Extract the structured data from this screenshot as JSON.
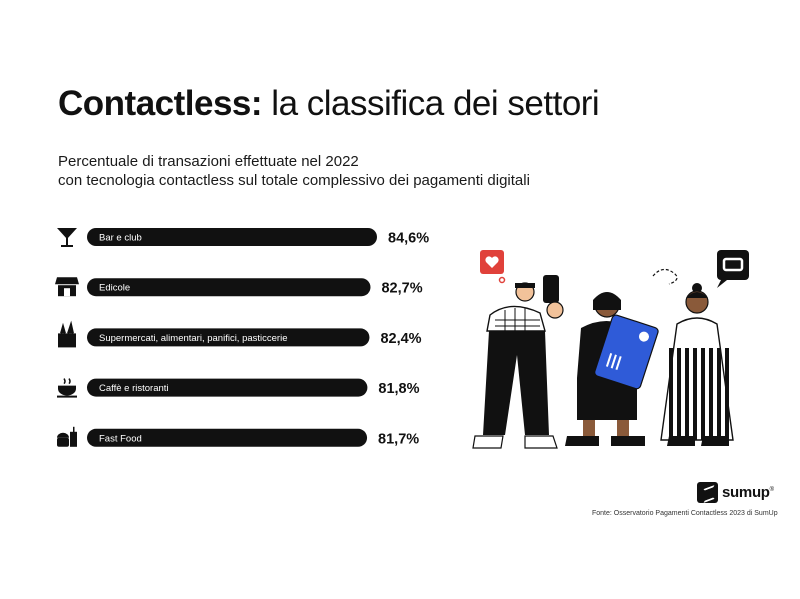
{
  "header": {
    "title_bold": "Contactless:",
    "title_rest": "la classifica dei settori",
    "subtitle_line1": "Percentuale di transazioni effettuate nel 2022",
    "subtitle_line2": "con tecnologia contactless sul totale complessivo dei pagamenti digitali"
  },
  "chart_data": {
    "type": "bar",
    "orientation": "horizontal",
    "categories": [
      "Bar e club",
      "Edicole",
      "Supermercati, alimentari, panifici, pasticcerie",
      "Caffè e ristoranti",
      "Fast Food"
    ],
    "values": [
      84.6,
      82.7,
      82.4,
      81.8,
      81.7
    ],
    "value_labels": [
      "84,6%",
      "82,7%",
      "82,4%",
      "81,8%",
      "81,7%"
    ],
    "icons": [
      "cocktail-glass-icon",
      "kiosk-icon",
      "grocery-bag-icon",
      "coffee-cup-icon",
      "fast-food-icon"
    ],
    "bar_color": "#111111",
    "label_color": "#ffffff",
    "grid": false
  },
  "footer": {
    "source": "Fonte: Osservatorio Pagamenti Contactless 2023 di SumUp",
    "brand": "sumup",
    "brand_mark": "®"
  },
  "colors": {
    "card_blue": "#2f5bd8",
    "heart_red": "#e0413a",
    "skin": "#f2c29a"
  }
}
